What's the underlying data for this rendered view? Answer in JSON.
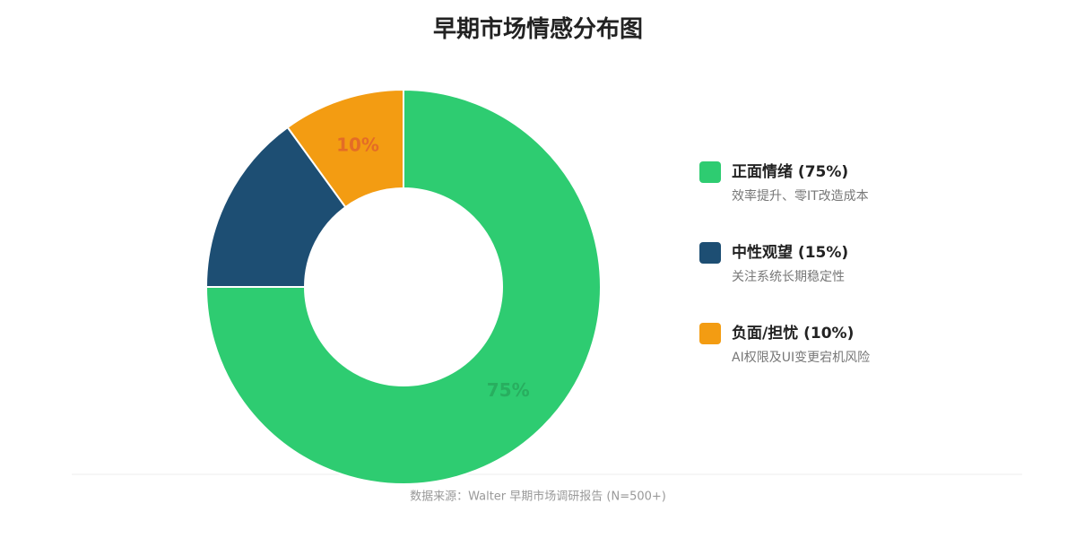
{
  "chart_data": {
    "type": "pie",
    "title": "早期市场情感分布图",
    "categories": [
      "正面情绪 (75%)",
      "中性观望 (15%)",
      "负面/担忧 (10%)"
    ],
    "descriptions": [
      "效率提升、零IT改造成本",
      "关注系统长期稳定性",
      "AI权限及UI变更宕机风险"
    ],
    "values": [
      75,
      15,
      10
    ],
    "value_labels": [
      "75%",
      null,
      "10%"
    ],
    "colors": [
      "#2ecc71",
      "#1d4e73",
      "#f39c12"
    ],
    "label_colors": [
      "#27a85c",
      "#1d4e73",
      "#e0642a"
    ],
    "donut": true,
    "source": "数据来源：Walter 早期市场调研报告 (N=500+)"
  }
}
